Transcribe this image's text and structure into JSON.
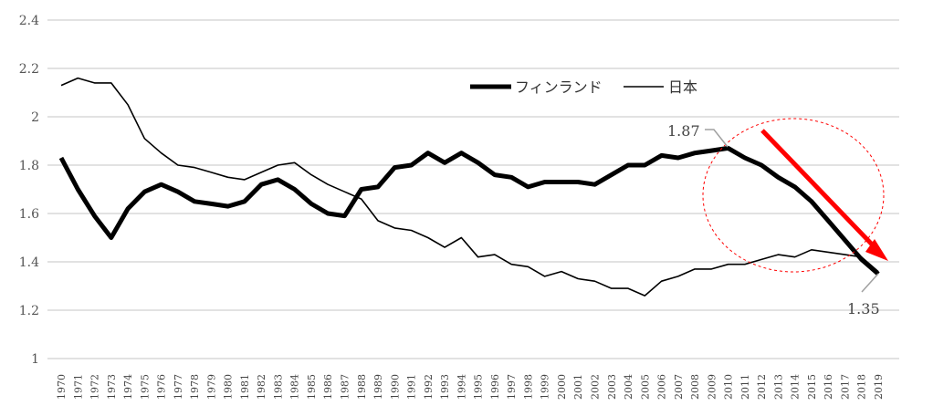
{
  "chart_data": {
    "type": "line",
    "title": "",
    "xlabel": "",
    "ylabel": "",
    "ylim": [
      1,
      2.4
    ],
    "yticks": [
      "1",
      "1.2",
      "1.4",
      "1.6",
      "1.8",
      "2",
      "2.2",
      "2.4"
    ],
    "grid": true,
    "legend_position": "top-center",
    "x": [
      1970,
      1971,
      1972,
      1973,
      1974,
      1975,
      1976,
      1977,
      1978,
      1979,
      1980,
      1981,
      1982,
      1983,
      1984,
      1985,
      1986,
      1987,
      1988,
      1989,
      1990,
      1991,
      1992,
      1993,
      1994,
      1995,
      1996,
      1997,
      1998,
      1999,
      2000,
      2001,
      2002,
      2003,
      2004,
      2005,
      2006,
      2007,
      2008,
      2009,
      2010,
      2011,
      2012,
      2013,
      2014,
      2015,
      2016,
      2017,
      2018,
      2019
    ],
    "series": [
      {
        "name": "フィンランド",
        "color": "#000000",
        "style": "thick",
        "values": [
          1.83,
          1.7,
          1.59,
          1.5,
          1.62,
          1.69,
          1.72,
          1.69,
          1.65,
          1.64,
          1.63,
          1.65,
          1.72,
          1.74,
          1.7,
          1.64,
          1.6,
          1.59,
          1.7,
          1.71,
          1.79,
          1.8,
          1.85,
          1.81,
          1.85,
          1.81,
          1.76,
          1.75,
          1.71,
          1.73,
          1.73,
          1.73,
          1.72,
          1.76,
          1.8,
          1.8,
          1.84,
          1.83,
          1.85,
          1.86,
          1.87,
          1.83,
          1.8,
          1.75,
          1.71,
          1.65,
          1.57,
          1.49,
          1.41,
          1.35
        ]
      },
      {
        "name": "日本",
        "color": "#000000",
        "style": "thin",
        "values": [
          2.13,
          2.16,
          2.14,
          2.14,
          2.05,
          1.91,
          1.85,
          1.8,
          1.79,
          1.77,
          1.75,
          1.74,
          1.77,
          1.8,
          1.81,
          1.76,
          1.72,
          1.69,
          1.66,
          1.57,
          1.54,
          1.53,
          1.5,
          1.46,
          1.5,
          1.42,
          1.43,
          1.39,
          1.38,
          1.34,
          1.36,
          1.33,
          1.32,
          1.29,
          1.29,
          1.26,
          1.32,
          1.34,
          1.37,
          1.37,
          1.39,
          1.39,
          1.41,
          1.43,
          1.42,
          1.45,
          1.44,
          1.43,
          1.42,
          1.36
        ]
      }
    ],
    "annotations": [
      {
        "text": "1.87",
        "year": 2010,
        "value": 1.87
      },
      {
        "text": "1.35",
        "year": 2019,
        "value": 1.35
      }
    ],
    "highlight_color": "#ff0000"
  }
}
